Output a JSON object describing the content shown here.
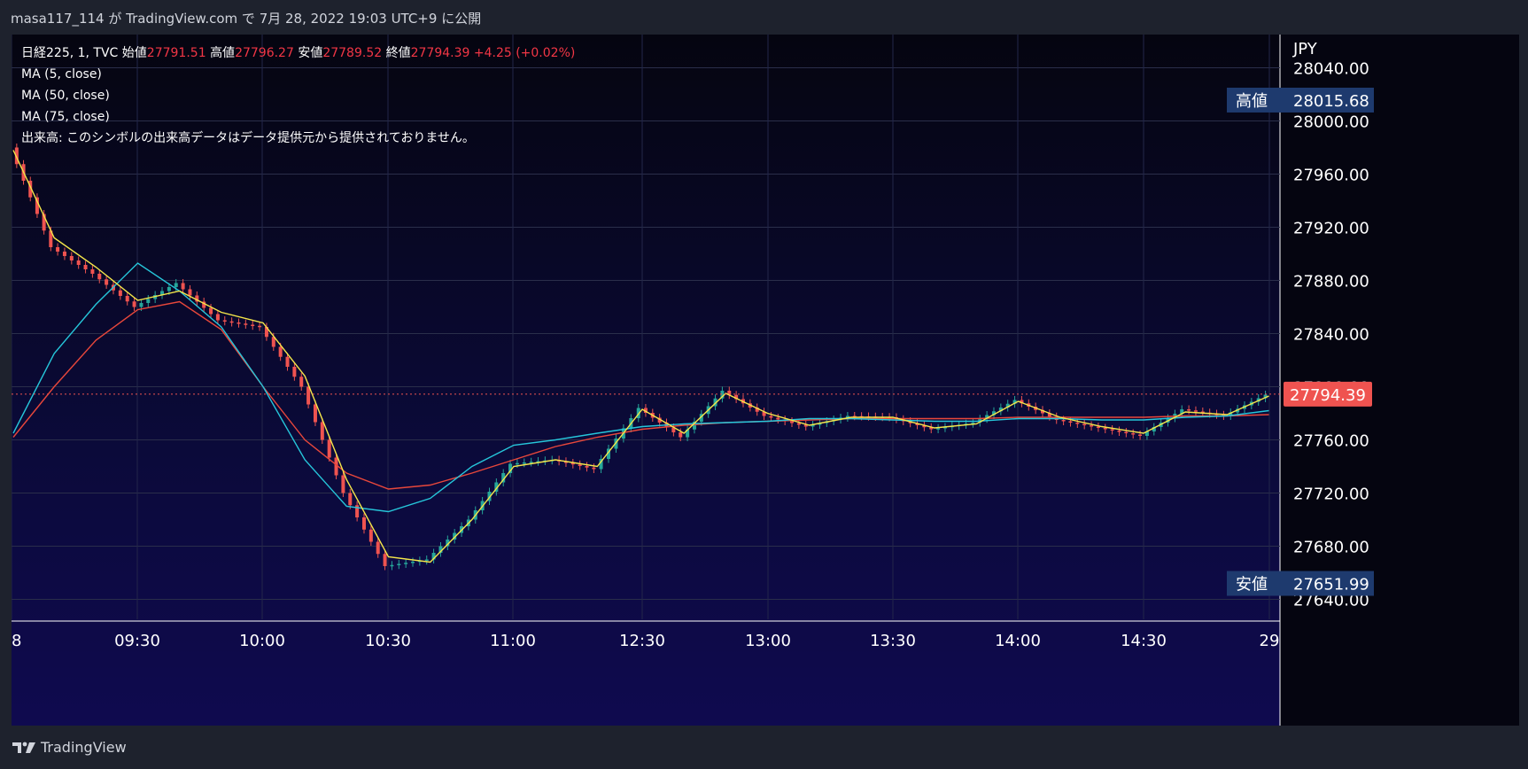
{
  "header": {
    "published_line": "masa117_114 が TradingView.com で 7月 28, 2022 19:03 UTC+9 に公開"
  },
  "legend": {
    "symbol": "日経225, 1, TVC",
    "open_label": "始値",
    "open": "27791.51",
    "high_label": "高値",
    "high": "27796.27",
    "low_label": "安値",
    "low": "27789.52",
    "close_label": "終値",
    "close": "27794.39",
    "change": "+4.25 (+0.02%)",
    "ma5": "MA (5, close)",
    "ma50": "MA (50, close)",
    "ma75": "MA (75, close)",
    "volume_note": "出来高: このシンボルの出来高データはデータ提供元から提供されておりません。"
  },
  "footer": {
    "brand": "TradingView"
  },
  "colors": {
    "up": "#26a69a",
    "down": "#ef5350",
    "ma5": "#f5e74a",
    "ma50": "#26c6da",
    "ma75": "#e8473b",
    "price_tag": "#ef5350",
    "hl_tag": "#1e3a6e"
  },
  "chart_data": {
    "type": "candlestick",
    "symbol": "日経225, 1, TVC",
    "currency": "JPY",
    "x_labels": [
      "8",
      "09:30",
      "10:00",
      "10:30",
      "11:00",
      "12:30",
      "13:00",
      "13:30",
      "14:00",
      "14:30",
      "29"
    ],
    "y_ticks": [
      27640.0,
      27680.0,
      27720.0,
      27760.0,
      27800.0,
      27840.0,
      27880.0,
      27920.0,
      27960.0,
      28000.0,
      28040.0
    ],
    "ylim": [
      27625,
      28065
    ],
    "high_label": "高値",
    "high_value": 28015.68,
    "low_label": "安値",
    "low_value": 27651.99,
    "last_price": 27794.39,
    "close_series": {
      "x": [
        "09:00",
        "09:10",
        "09:20",
        "09:30",
        "09:40",
        "09:50",
        "10:00",
        "10:10",
        "10:20",
        "10:30",
        "10:40",
        "10:50",
        "11:00",
        "11:10",
        "11:20",
        "12:30",
        "12:40",
        "12:50",
        "13:00",
        "13:10",
        "13:20",
        "13:30",
        "13:40",
        "13:50",
        "14:00",
        "14:10",
        "14:20",
        "14:30",
        "14:40",
        "14:50",
        "15:00"
      ],
      "y": [
        27980,
        27905,
        27885,
        27860,
        27878,
        27850,
        27845,
        27800,
        27720,
        27665,
        27670,
        27700,
        27742,
        27745,
        27738,
        27784,
        27762,
        27797,
        27778,
        27770,
        27778,
        27777,
        27768,
        27773,
        27790,
        27775,
        27769,
        27763,
        27783,
        27778,
        27794
      ]
    },
    "ma5": {
      "name": "MA (5, close)",
      "y": [
        27978,
        27912,
        27890,
        27865,
        27872,
        27856,
        27848,
        27808,
        27730,
        27672,
        27668,
        27700,
        27740,
        27745,
        27740,
        27783,
        27765,
        27795,
        27780,
        27771,
        27777,
        27777,
        27769,
        27772,
        27789,
        27777,
        27770,
        27765,
        27781,
        27779,
        27793
      ]
    },
    "ma50": {
      "name": "MA (50, close)",
      "y": [
        27765,
        27825,
        27862,
        27893,
        27872,
        27845,
        27800,
        27745,
        27710,
        27706,
        27716,
        27740,
        27756,
        27760,
        27765,
        27770,
        27772,
        27773,
        27774,
        27776,
        27776,
        27775,
        27774,
        27774,
        27776,
        27776,
        27775,
        27775,
        27777,
        27778,
        27782
      ]
    },
    "ma75": {
      "name": "MA (75, close)",
      "y": [
        27762,
        27800,
        27835,
        27858,
        27864,
        27843,
        27800,
        27760,
        27735,
        27723,
        27726,
        27735,
        27745,
        27755,
        27762,
        27768,
        27771,
        27773,
        27774,
        27775,
        27776,
        27776,
        27776,
        27776,
        27777,
        27777,
        27777,
        27777,
        27778,
        27778,
        27779
      ]
    }
  }
}
